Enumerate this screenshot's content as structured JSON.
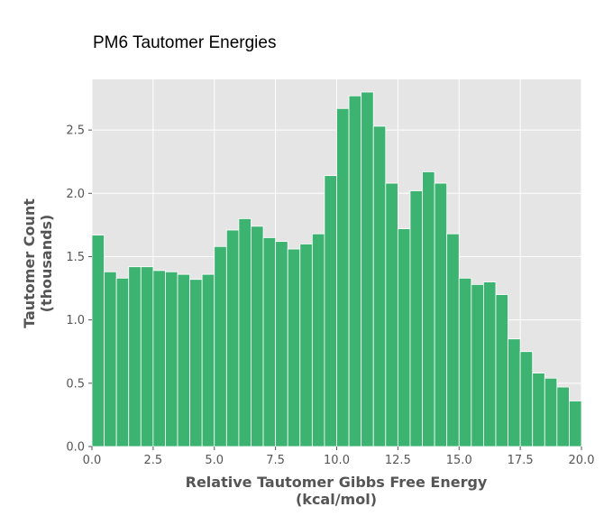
{
  "chart_data": {
    "type": "bar",
    "title": "PM6 Tautomer Energies",
    "xlabel_line1": "Relative Tautomer Gibbs Free Energy",
    "xlabel_line2": "(kcal/mol)",
    "ylabel_line1": "Tautomer Count",
    "ylabel_line2": "(thousands)",
    "xlim": [
      0,
      20
    ],
    "ylim": [
      0,
      2.9
    ],
    "bin_width": 0.5,
    "bin_start": 0,
    "values": [
      1.67,
      1.38,
      1.33,
      1.42,
      1.42,
      1.39,
      1.38,
      1.36,
      1.32,
      1.36,
      1.58,
      1.71,
      1.8,
      1.74,
      1.65,
      1.62,
      1.56,
      1.6,
      1.68,
      2.14,
      2.67,
      2.77,
      2.8,
      2.53,
      2.08,
      1.72,
      2.02,
      2.17,
      2.08,
      1.68,
      1.33,
      1.28,
      1.3,
      1.2,
      0.85,
      0.75,
      0.58,
      0.54,
      0.47,
      0.36
    ],
    "x_ticks": [
      "0.0",
      "2.5",
      "5.0",
      "7.5",
      "10.0",
      "12.5",
      "15.0",
      "17.5",
      "20.0"
    ],
    "y_ticks": [
      "0.0",
      "0.5",
      "1.0",
      "1.5",
      "2.0",
      "2.5"
    ],
    "grid": true,
    "colors": {
      "bar": "#3cb371",
      "background": "#e5e5e5",
      "grid": "#ffffff"
    }
  }
}
